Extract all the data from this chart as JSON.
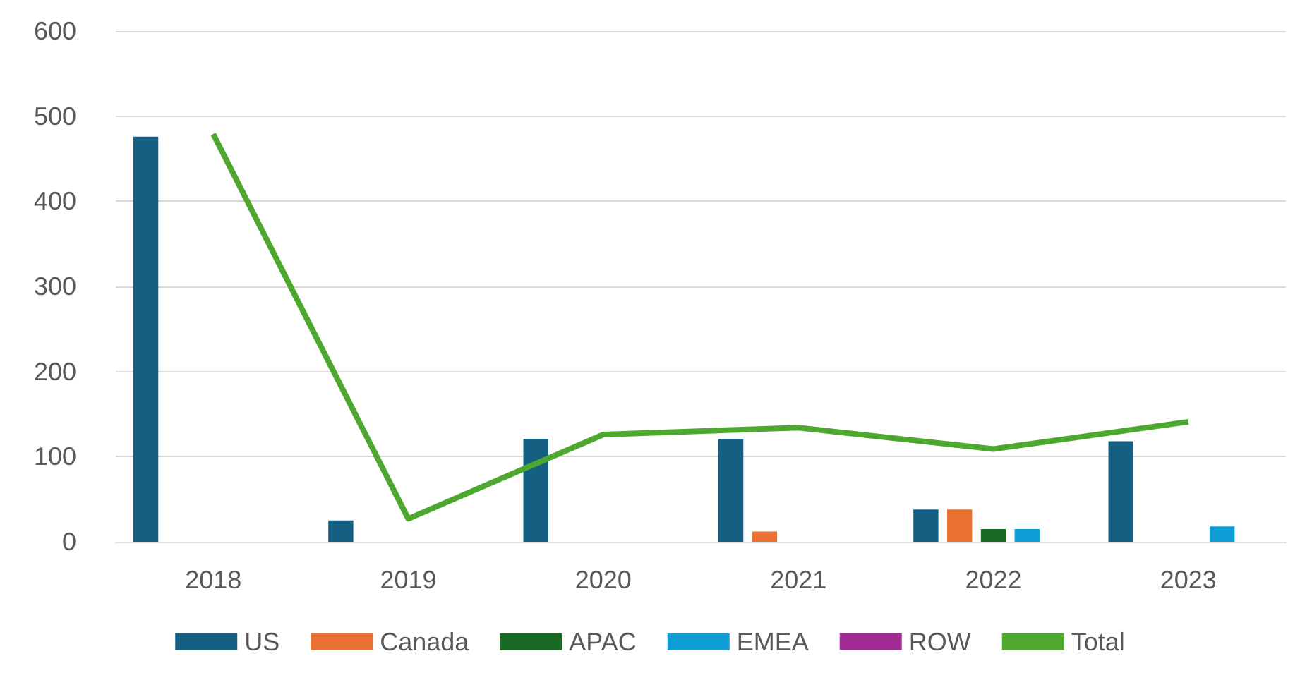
{
  "chart_data": {
    "type": "bar",
    "categories": [
      "2018",
      "2019",
      "2020",
      "2021",
      "2022",
      "2023"
    ],
    "series": [
      {
        "name": "US",
        "color": "#156082",
        "values": [
          476,
          25,
          121,
          121,
          38,
          118
        ]
      },
      {
        "name": "Canada",
        "color": "#e97132",
        "values": [
          0,
          0,
          0,
          12,
          38,
          0
        ]
      },
      {
        "name": "APAC",
        "color": "#196b24",
        "values": [
          0,
          0,
          0,
          0,
          15,
          0
        ]
      },
      {
        "name": "EMEA",
        "color": "#0f9ed5",
        "values": [
          0,
          0,
          0,
          0,
          15,
          18
        ]
      },
      {
        "name": "ROW",
        "color": "#a02b93",
        "values": [
          0,
          0,
          0,
          0,
          0,
          0
        ]
      },
      {
        "name": "Total",
        "type": "line",
        "color": "#4ea72e",
        "values": [
          479,
          27,
          126,
          134,
          109,
          141
        ]
      }
    ],
    "ylim": [
      0,
      600
    ],
    "yticks": [
      0,
      100,
      200,
      300,
      400,
      500,
      600
    ],
    "grid": "y",
    "legend": "bottom",
    "marker": "none"
  }
}
